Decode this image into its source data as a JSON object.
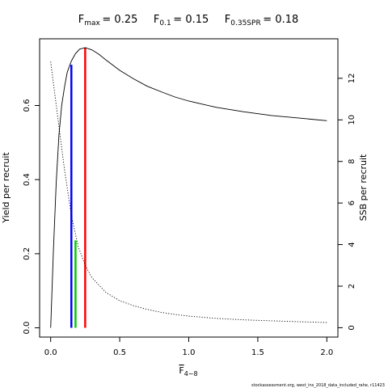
{
  "chart_data": {
    "type": "line",
    "header": [
      {
        "base": "F",
        "sub": "max",
        "value": "= 0.25"
      },
      {
        "base": "F",
        "sub": "0.1",
        "value": "= 0.15"
      },
      {
        "base": "F",
        "sub": "0.35SPR",
        "value": "= 0.18"
      }
    ],
    "xlabel": {
      "base": "F",
      "sub": "4−8"
    },
    "ylabel": "Yield per recruit",
    "y2label": "SSB per recruit",
    "xlim": [
      -0.08,
      2.08
    ],
    "ylim": [
      -0.025,
      0.78
    ],
    "y2lim": [
      -0.45,
      13.9
    ],
    "xticks": [
      "0.0",
      "0.5",
      "1.0",
      "1.5",
      "2.0"
    ],
    "yticks": [
      "0.0",
      "0.2",
      "0.4",
      "0.6"
    ],
    "y2ticks": [
      "0",
      "2",
      "4",
      "6",
      "8",
      "10",
      "12"
    ],
    "series": [
      {
        "axis": "left",
        "style": "solid",
        "x": [
          0,
          0.02,
          0.04,
          0.06,
          0.08,
          0.1,
          0.12,
          0.15,
          0.18,
          0.21,
          0.25,
          0.3,
          0.35,
          0.4,
          0.5,
          0.6,
          0.7,
          0.8,
          0.9,
          1.0,
          1.2,
          1.4,
          1.6,
          1.8,
          2.0
        ],
        "y": [
          0.0,
          0.21,
          0.39,
          0.52,
          0.6,
          0.65,
          0.69,
          0.72,
          0.74,
          0.752,
          0.756,
          0.75,
          0.738,
          0.723,
          0.695,
          0.672,
          0.652,
          0.637,
          0.623,
          0.612,
          0.595,
          0.583,
          0.573,
          0.566,
          0.559
        ]
      },
      {
        "axis": "right",
        "style": "dotted",
        "x": [
          0,
          0.05,
          0.1,
          0.15,
          0.2,
          0.25,
          0.3,
          0.4,
          0.5,
          0.6,
          0.7,
          0.8,
          0.9,
          1.0,
          1.2,
          1.4,
          1.6,
          1.8,
          2.0
        ],
        "y": [
          12.8,
          10.2,
          7.6,
          5.4,
          3.9,
          3.0,
          2.4,
          1.7,
          1.3,
          1.06,
          0.88,
          0.74,
          0.64,
          0.56,
          0.45,
          0.38,
          0.33,
          0.29,
          0.25
        ]
      }
    ],
    "reference_lines": [
      {
        "label": "F0.1",
        "x": 0.15,
        "y_top": 0.71,
        "axis": "left",
        "color": "#0000ff"
      },
      {
        "label": "F0.35SPR",
        "x": 0.18,
        "y_top": 4.2,
        "axis": "right",
        "color": "#00cc00"
      },
      {
        "label": "Fmax",
        "x": 0.25,
        "y_top": 0.756,
        "axis": "left",
        "color": "#ff0000"
      }
    ],
    "grid": false,
    "legend": "none"
  },
  "footer_text": "stockassessment.org, west_ins_2018_data_included_rahe, r11423"
}
